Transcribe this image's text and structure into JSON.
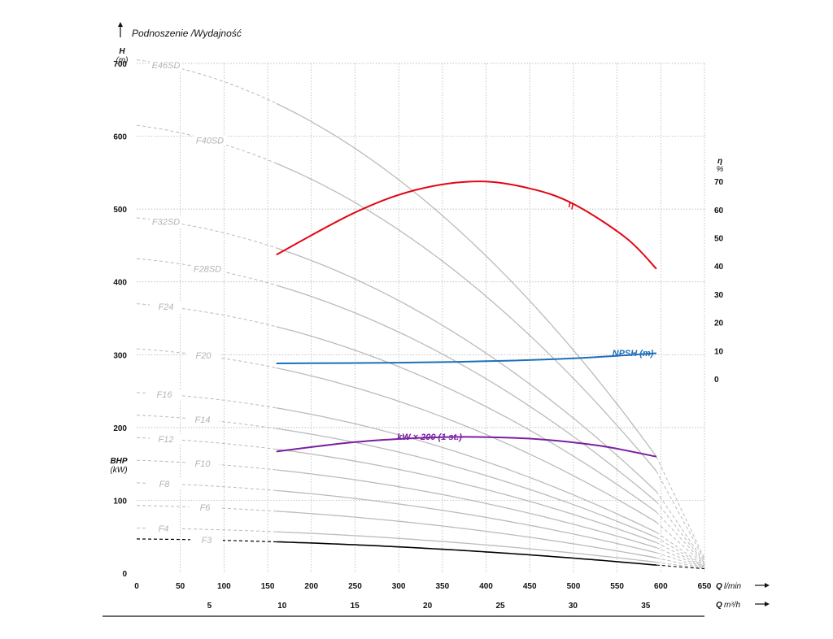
{
  "chart_data": {
    "type": "line",
    "title": "Podnoszenie /Wydajność",
    "y_axis": {
      "label": "H",
      "unit": "(m)",
      "ticks": [
        0,
        100,
        200,
        300,
        400,
        500,
        600,
        700
      ],
      "range": [
        0,
        700
      ]
    },
    "bhp_axis": {
      "label": "BHP",
      "unit": "(kW)"
    },
    "eta_axis": {
      "label": "η",
      "unit": "%",
      "ticks": [
        0,
        10,
        20,
        30,
        40,
        50,
        60,
        70
      ],
      "range": [
        0,
        70
      ]
    },
    "x_axis": {
      "label": "Q",
      "unit": "l/min",
      "ticks": [
        0,
        50,
        100,
        150,
        200,
        250,
        300,
        350,
        400,
        450,
        500,
        550,
        600,
        650
      ],
      "range": [
        0,
        650
      ]
    },
    "x2_axis": {
      "label": "Q",
      "unit": "m³/h",
      "ticks": [
        5,
        10,
        15,
        20,
        25,
        30,
        35
      ]
    },
    "operating_range": [
      160,
      595
    ],
    "head_curves": [
      {
        "name": "E46SD",
        "shutoff": 705,
        "end": 160
      },
      {
        "name": "F40SD",
        "shutoff": 615,
        "end": 140
      },
      {
        "name": "F32SD",
        "shutoff": 488,
        "end": 112
      },
      {
        "name": "F28SD",
        "shutoff": 432,
        "end": 98
      },
      {
        "name": "F24",
        "shutoff": 370,
        "end": 84
      },
      {
        "name": "F20",
        "shutoff": 308,
        "end": 70
      },
      {
        "name": "F16",
        "shutoff": 248,
        "end": 56
      },
      {
        "name": "F14",
        "shutoff": 217,
        "end": 49
      },
      {
        "name": "F12",
        "shutoff": 186,
        "end": 42
      },
      {
        "name": "F10",
        "shutoff": 155,
        "end": 35
      },
      {
        "name": "F8",
        "shutoff": 124,
        "end": 28
      },
      {
        "name": "F6",
        "shutoff": 93,
        "end": 21
      },
      {
        "name": "F4",
        "shutoff": 62,
        "end": 15
      },
      {
        "name": "F3",
        "shutoff": 47,
        "end": 11
      }
    ],
    "efficiency": {
      "label": "η",
      "q": [
        160,
        250,
        320,
        390,
        450,
        500,
        560,
        595
      ],
      "eta": [
        44,
        59,
        67,
        70,
        67.5,
        62,
        50,
        39
      ]
    },
    "npsh": {
      "label": "NPSH (m)",
      "q": [
        160,
        300,
        400,
        500,
        595
      ],
      "h": [
        288,
        289,
        291,
        295,
        302
      ]
    },
    "power": {
      "label": "kW × 200 (1 st.)",
      "q": [
        160,
        250,
        330,
        390,
        460,
        530,
        595
      ],
      "h": [
        167,
        180,
        186,
        187,
        184,
        175,
        160
      ]
    },
    "colors": {
      "grid": "#aaaaaa",
      "family": "#bbbbbb",
      "eta": "#e30613",
      "npsh": "#1d6fba",
      "power": "#7b1fa2",
      "base": "#000000"
    }
  }
}
